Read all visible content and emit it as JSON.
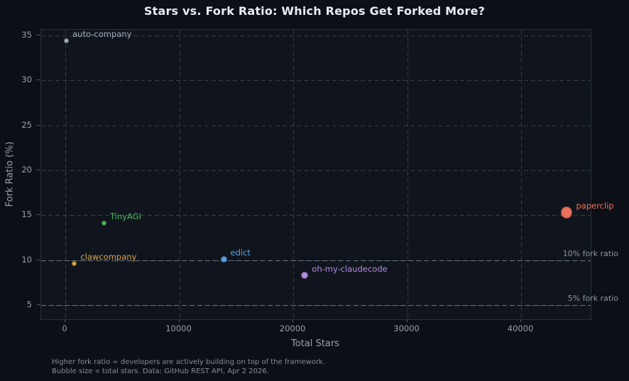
{
  "title": "Stars vs. Fork Ratio: Which Repos Get Forked More?",
  "footer": {
    "line1": "Higher fork ratio = developers are actively building on top of the framework.",
    "line2": "Bubble size ∝ total stars. Data: GitHub REST API, Apr 2 2026."
  },
  "colors": {
    "background": "#0c0f15",
    "plot_background": "#10151d",
    "plot_border": "#2a313a",
    "gridline": "#414a55",
    "reference_line": "#79828d",
    "tick_text": "#99a1ab",
    "axis_label_text": "#9aa2ac",
    "title_text": "#e9edf3",
    "footer_text": "#868e98"
  },
  "chart_data": {
    "type": "scatter",
    "title": "Stars vs. Fork Ratio: Which Repos Get Forked More?",
    "xlabel": "Total Stars",
    "ylabel": "Fork Ratio (%)",
    "xlim": [
      -2120,
      46100
    ],
    "ylim": [
      3.42,
      35.63
    ],
    "x_ticks": [
      0,
      10000,
      20000,
      30000,
      40000
    ],
    "x_tick_labels": [
      "0",
      "10000",
      "20000",
      "30000",
      "40000"
    ],
    "y_ticks": [
      5,
      10,
      15,
      20,
      25,
      30,
      35
    ],
    "y_tick_labels": [
      "5",
      "10",
      "15",
      "20",
      "25",
      "30",
      "35"
    ],
    "grid": "dashed, both axes",
    "legend": "none (inline point labels)",
    "bubble_size_note": "bubble size proportional to total stars",
    "points": [
      {
        "label": "auto-company",
        "stars": 100,
        "fork_ratio": 34.4,
        "radius_px": 3.5,
        "color": "#a6aeb8"
      },
      {
        "label": "TinyAGI",
        "stars": 3400,
        "fork_ratio": 14.1,
        "radius_px": 3.4,
        "color": "#4cb85c"
      },
      {
        "label": "clawcompany",
        "stars": 800,
        "fork_ratio": 9.6,
        "radius_px": 3.5,
        "color": "#dba440"
      },
      {
        "label": "edict",
        "stars": 13900,
        "fork_ratio": 10.1,
        "radius_px": 4.4,
        "color": "#5b9fe0"
      },
      {
        "label": "oh-my-claudecode",
        "stars": 21000,
        "fork_ratio": 8.3,
        "radius_px": 5.2,
        "color": "#b48ae2"
      },
      {
        "label": "paperclip",
        "stars": 44000,
        "fork_ratio": 15.3,
        "radius_px": 8.2,
        "color": "#e8715a"
      }
    ],
    "reference_lines": [
      {
        "value": 10,
        "label": "10% fork ratio"
      },
      {
        "value": 5,
        "label": "5% fork ratio"
      }
    ]
  }
}
